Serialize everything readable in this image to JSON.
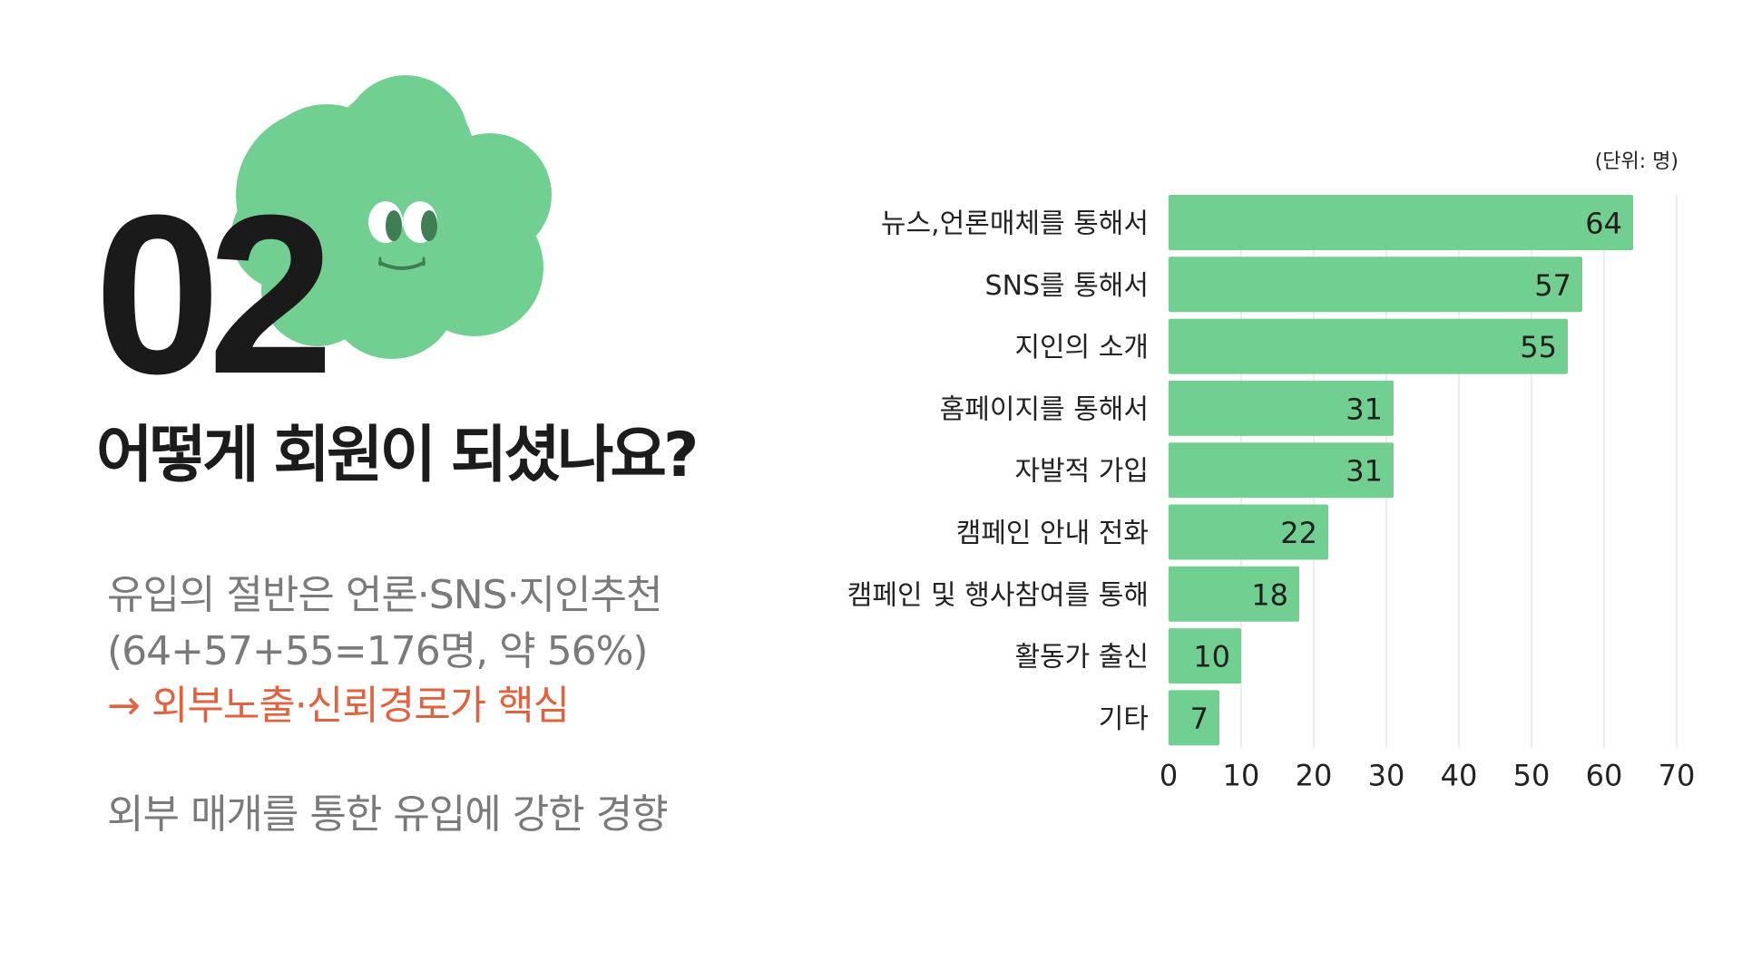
{
  "slide": {
    "number": "02",
    "headline": "어떻게 회원이 되셨나요?",
    "summary_line1": "유입의 절반은 언론·SNS·지인추천",
    "summary_line2": "(64+57+55=176명, 약 56%)",
    "summary_highlight": "→ 외부노출·신뢰경로가 핵심",
    "summary_line4": "외부 매개를 통한 유입에 강한 경향"
  },
  "colors": {
    "bar": "#72cf92",
    "mascot": "#72cf92",
    "mascot_detail": "#3f7d55",
    "highlight": "#e3623e"
  },
  "chart_data": {
    "type": "bar",
    "orientation": "horizontal",
    "unit_label": "(단위: 명)",
    "categories": [
      "뉴스,언론매체를 통해서",
      "SNS를 통해서",
      "지인의 소개",
      "홈페이지를 통해서",
      "자발적 가입",
      "캠페인 안내 전화",
      "캠페인 및 행사참여를 통해",
      "활동가 출신",
      "기타"
    ],
    "values": [
      64,
      57,
      55,
      31,
      31,
      22,
      18,
      10,
      7
    ],
    "xlim": [
      0,
      70
    ],
    "xticks": [
      0,
      10,
      20,
      30,
      40,
      50,
      60,
      70
    ],
    "grid": true,
    "data_labels": true
  }
}
